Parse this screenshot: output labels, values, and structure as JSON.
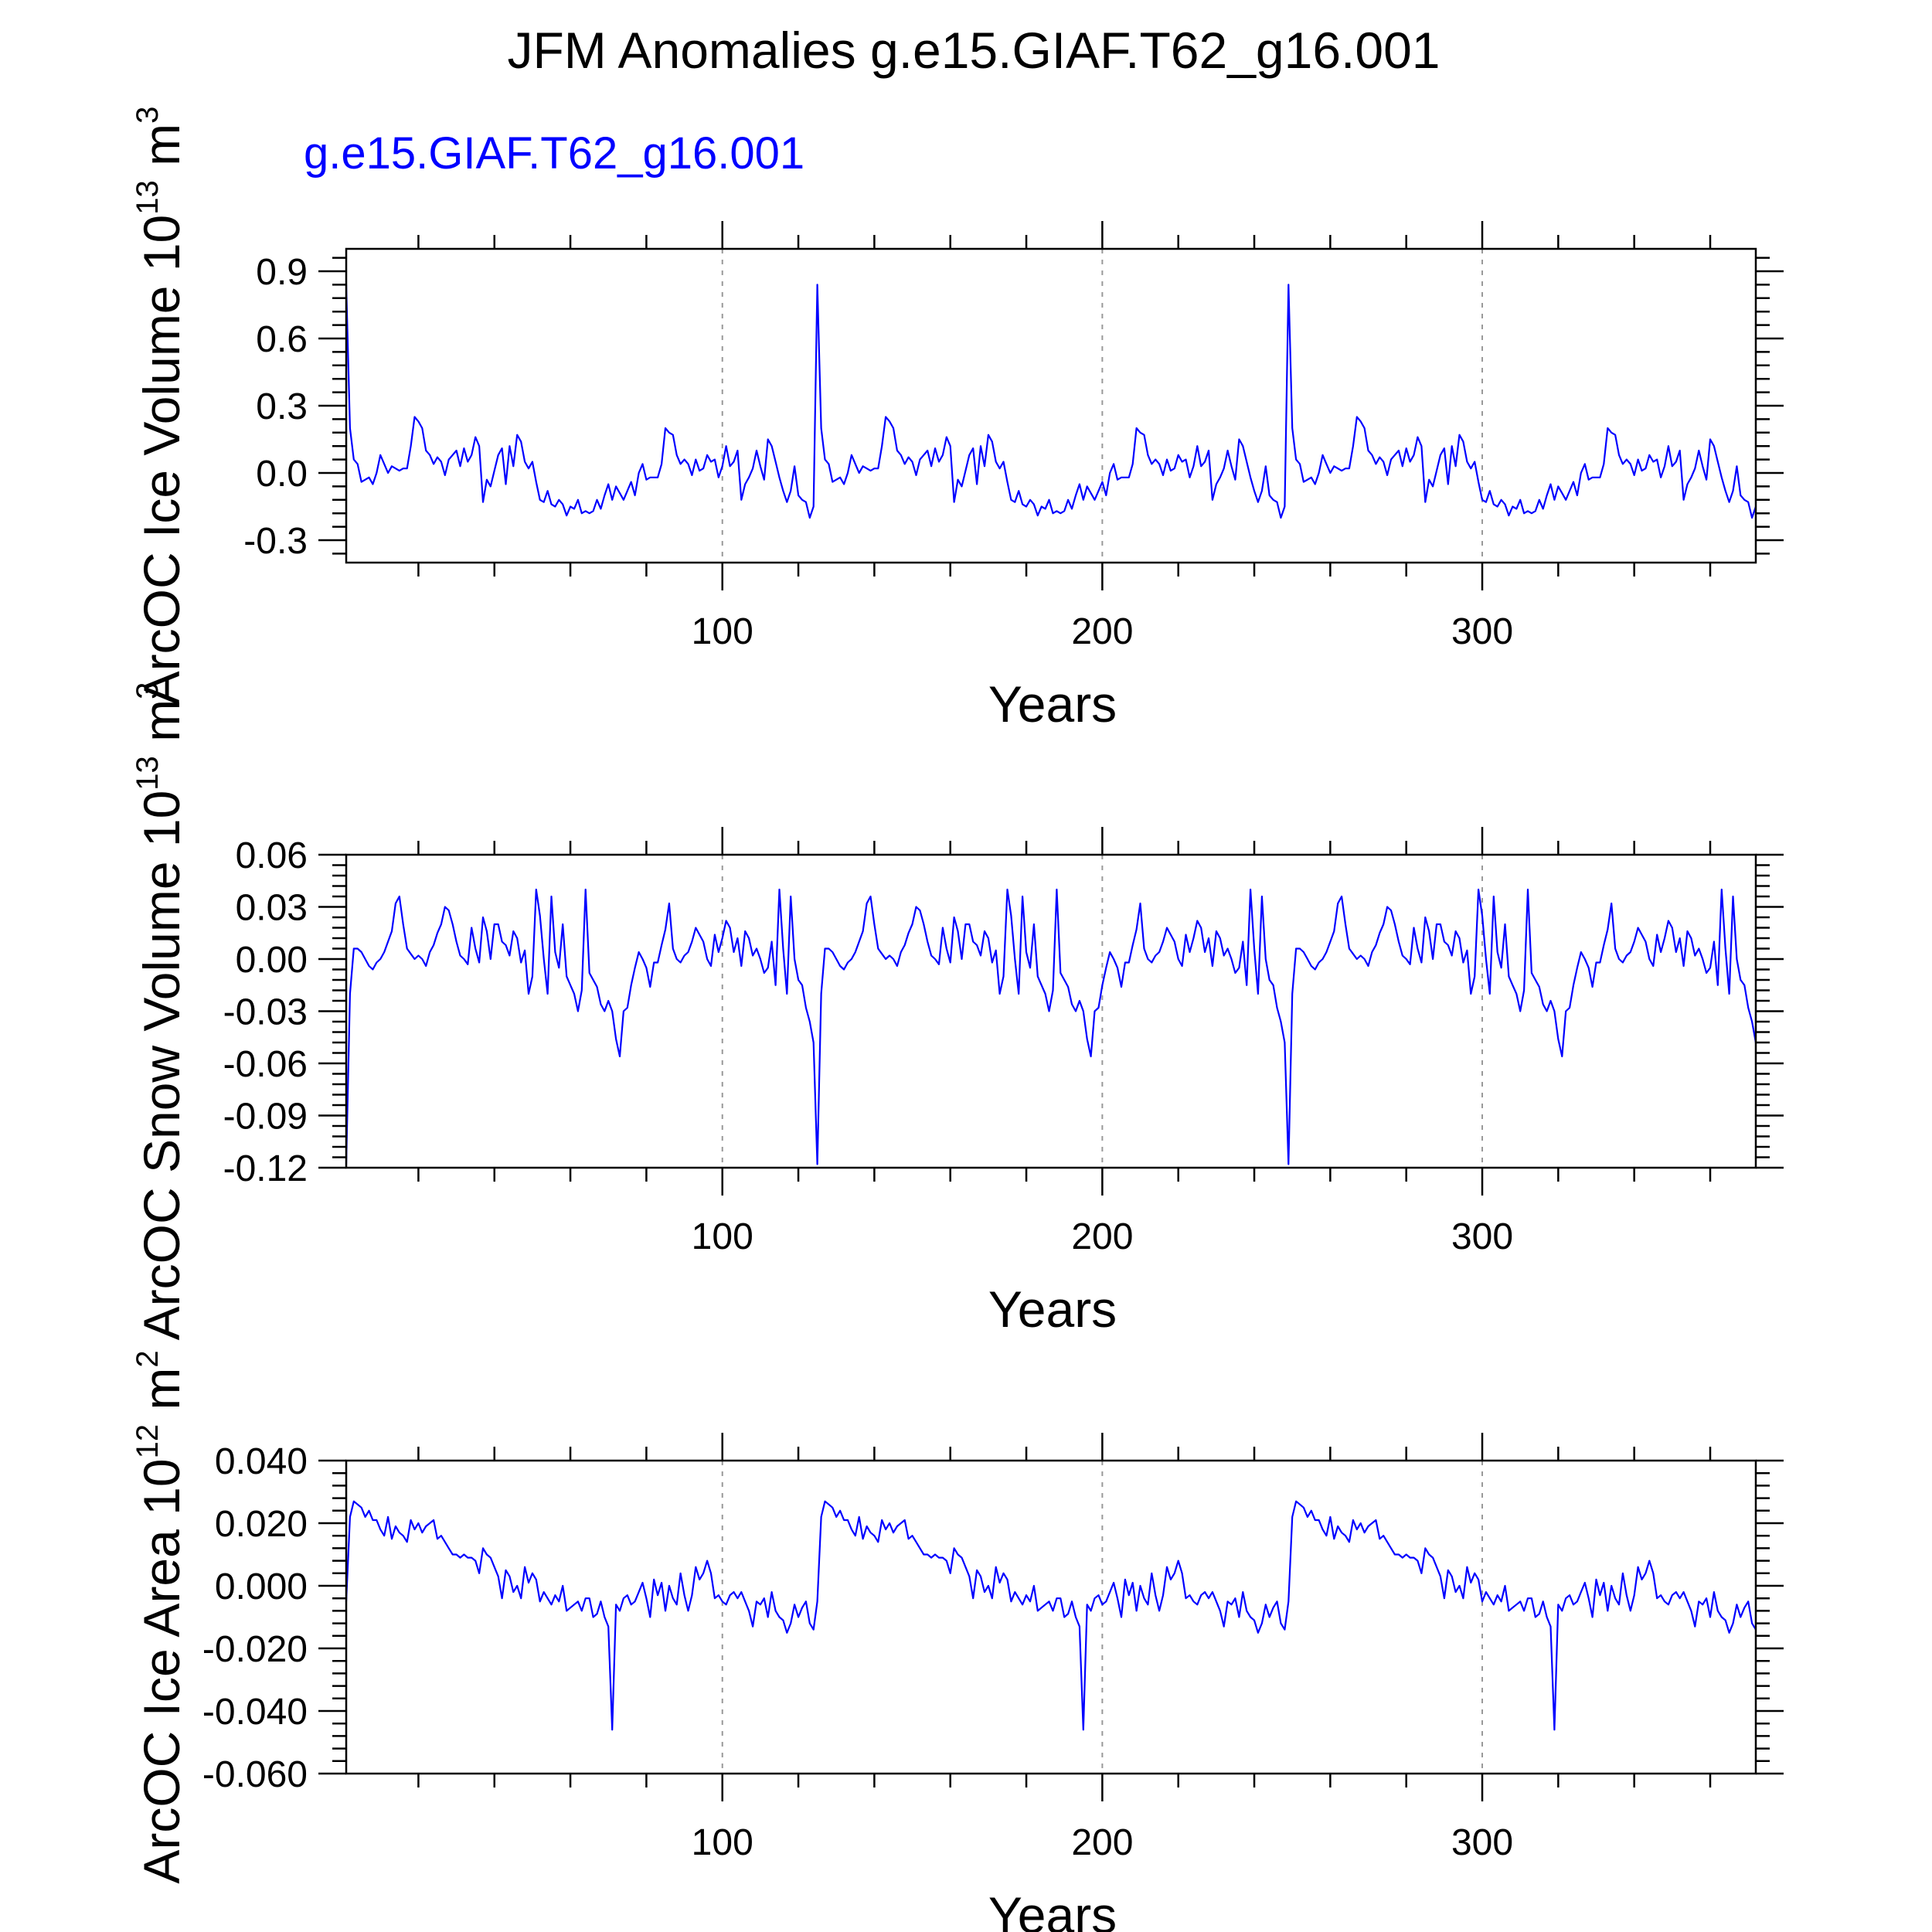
{
  "main_title": "JFM Anomalies g.e15.GIAF.T62_g16.001",
  "legend_label": "g.e15.GIAF.T62_g16.001",
  "colors": {
    "series": "#0000ff",
    "frame": "#000000",
    "grid": "#999999",
    "legend": "#0000ff",
    "text": "#000000"
  },
  "chart_data": [
    {
      "type": "line",
      "title": "",
      "xlabel": "Years",
      "ylabel": "ArcOC Ice Volume 10^13 m^3",
      "ylabel_parts": {
        "main": "ArcOC Ice Volume 10",
        "exp1": "13",
        "unit": " m",
        "exp2": "3"
      },
      "xlim": [
        1,
        372
      ],
      "ylim": [
        -0.4,
        1.0
      ],
      "xticks": [
        100,
        200,
        300
      ],
      "xtick_labels": [
        "100",
        "200",
        "300"
      ],
      "yticks": [
        0.9,
        0.6,
        0.3,
        0.0,
        -0.3
      ],
      "ytick_labels": [
        "0.9",
        "0.6",
        "0.3",
        "0.0",
        "-0.3"
      ],
      "x_start": 1,
      "x_step": 1,
      "period": 124,
      "cycle": [
        0.84,
        0.2,
        0.06,
        0.04,
        -0.04,
        -0.03,
        -0.02,
        -0.05,
        0.0,
        0.08,
        0.04,
        0.0,
        0.03,
        0.02,
        0.01,
        0.02,
        0.02,
        0.12,
        0.25,
        0.23,
        0.2,
        0.1,
        0.08,
        0.04,
        0.07,
        0.05,
        -0.01,
        0.06,
        0.08,
        0.1,
        0.03,
        0.11,
        0.05,
        0.08,
        0.16,
        0.12,
        -0.13,
        -0.03,
        -0.06,
        0.01,
        0.08,
        0.11,
        -0.05,
        0.12,
        0.03,
        0.17,
        0.14,
        0.05,
        0.02,
        0.05,
        -0.04,
        -0.12,
        -0.13,
        -0.08,
        -0.14,
        -0.15,
        -0.12,
        -0.14,
        -0.19,
        -0.15,
        -0.16,
        -0.12,
        -0.18,
        -0.17,
        -0.18,
        -0.17,
        -0.12,
        -0.16,
        -0.1,
        -0.05,
        -0.12,
        -0.06,
        -0.09,
        -0.12,
        -0.08,
        -0.04,
        -0.1,
        0.0,
        0.04,
        -0.03,
        -0.02,
        -0.02,
        -0.02,
        0.04,
        0.2,
        0.18,
        0.17,
        0.08,
        0.04,
        0.06,
        0.04,
        -0.01,
        0.06,
        0.01,
        0.02,
        0.08,
        0.05,
        0.06,
        -0.02,
        0.03,
        0.12,
        0.03,
        0.05,
        0.1,
        -0.12,
        -0.05,
        -0.02,
        0.02,
        0.1,
        0.03,
        -0.03,
        0.15,
        0.12,
        0.05,
        -0.02,
        -0.08,
        -0.13,
        -0.08,
        0.03,
        -0.1,
        -0.12,
        -0.13,
        -0.2,
        -0.15
      ]
    },
    {
      "type": "line",
      "title": "",
      "xlabel": "Years",
      "ylabel": "ArcOC Snow Volume 10^13 m^3",
      "ylabel_parts": {
        "main": "ArcOC Snow Volume 10",
        "exp1": "13",
        "unit": " m",
        "exp2": "3"
      },
      "xlim": [
        1,
        372
      ],
      "ylim": [
        -0.12,
        0.06
      ],
      "xticks": [
        100,
        200,
        300
      ],
      "xtick_labels": [
        "100",
        "200",
        "300"
      ],
      "yticks": [
        0.06,
        0.03,
        0.0,
        -0.03,
        -0.06,
        -0.09,
        -0.12
      ],
      "ytick_labels": [
        "0.06",
        "0.03",
        "0.00",
        "-0.03",
        "-0.06",
        "-0.09",
        "-0.12"
      ],
      "x_start": 1,
      "x_step": 1,
      "period": 124,
      "cycle": [
        -0.118,
        -0.02,
        0.006,
        0.006,
        0.004,
        0.0,
        -0.004,
        -0.006,
        -0.002,
        0.0,
        0.004,
        0.01,
        0.016,
        0.032,
        0.036,
        0.02,
        0.006,
        0.003,
        0.0,
        0.002,
        0.0,
        -0.004,
        0.004,
        0.008,
        0.015,
        0.02,
        0.03,
        0.028,
        0.02,
        0.01,
        0.002,
        0.0,
        -0.003,
        0.018,
        0.006,
        -0.002,
        0.024,
        0.016,
        0.0,
        0.02,
        0.02,
        0.01,
        0.008,
        0.002,
        0.016,
        0.012,
        -0.002,
        0.005,
        -0.02,
        -0.01,
        0.04,
        0.025,
        0.0,
        -0.02,
        0.036,
        0.004,
        -0.005,
        0.02,
        -0.01,
        -0.015,
        -0.02,
        -0.03,
        -0.018,
        0.04,
        -0.008,
        -0.012,
        -0.016,
        -0.026,
        -0.03,
        -0.024,
        -0.03,
        -0.046,
        -0.056,
        -0.03,
        -0.028,
        -0.015,
        -0.005,
        0.004,
        0.0,
        -0.005,
        -0.016,
        -0.002,
        -0.002,
        0.008,
        0.017,
        0.032,
        0.006,
        0.0,
        -0.002,
        0.002,
        0.004,
        0.01,
        0.018,
        0.014,
        0.01,
        0.0,
        -0.004,
        0.014,
        0.004,
        0.012,
        0.022,
        0.018,
        0.004,
        0.012,
        -0.004,
        0.016,
        0.012,
        0.002,
        0.006,
        0.0,
        -0.008,
        -0.005,
        0.01,
        -0.015,
        0.04,
        0.006,
        -0.02,
        0.036,
        0.0,
        -0.012,
        -0.015,
        -0.028,
        -0.036,
        -0.048
      ]
    },
    {
      "type": "line",
      "title": "",
      "xlabel": "Years",
      "ylabel": "ArcOC Ice Area 10^12 m^2",
      "ylabel_parts": {
        "main": "ArcOC Ice Area 10",
        "exp1": "12",
        "unit": " m",
        "exp2": "2"
      },
      "xlim": [
        1,
        372
      ],
      "ylim": [
        -0.06,
        0.04
      ],
      "xticks": [
        100,
        200,
        300
      ],
      "xtick_labels": [
        "100",
        "200",
        "300"
      ],
      "yticks": [
        0.04,
        0.02,
        0.0,
        -0.02,
        -0.04,
        -0.06
      ],
      "ytick_labels": [
        "0.040",
        "0.020",
        "0.000",
        "-0.020",
        "-0.040",
        "-0.060"
      ],
      "x_start": 1,
      "x_step": 1,
      "period": 124,
      "cycle": [
        -0.005,
        0.022,
        0.027,
        0.026,
        0.025,
        0.022,
        0.024,
        0.021,
        0.021,
        0.018,
        0.016,
        0.022,
        0.015,
        0.019,
        0.017,
        0.016,
        0.014,
        0.021,
        0.018,
        0.02,
        0.017,
        0.019,
        0.02,
        0.021,
        0.015,
        0.016,
        0.014,
        0.012,
        0.01,
        0.01,
        0.009,
        0.01,
        0.009,
        0.009,
        0.008,
        0.004,
        0.012,
        0.01,
        0.009,
        0.006,
        0.003,
        -0.004,
        0.005,
        0.003,
        -0.002,
        0.0,
        -0.004,
        0.006,
        0.001,
        0.004,
        0.002,
        -0.005,
        -0.002,
        -0.004,
        -0.006,
        -0.003,
        -0.005,
        0.0,
        -0.008,
        -0.007,
        -0.006,
        -0.005,
        -0.008,
        -0.004,
        -0.004,
        -0.01,
        -0.009,
        -0.005,
        -0.01,
        -0.013,
        -0.046,
        -0.006,
        -0.008,
        -0.004,
        -0.003,
        -0.006,
        -0.005,
        -0.002,
        0.001,
        -0.004,
        -0.01,
        0.002,
        -0.003,
        0.001,
        -0.008,
        0.0,
        -0.004,
        -0.006,
        0.004,
        -0.003,
        -0.008,
        -0.003,
        0.006,
        0.002,
        0.004,
        0.008,
        0.004,
        -0.004,
        -0.003,
        -0.005,
        -0.006,
        -0.003,
        -0.002,
        -0.004,
        -0.002,
        -0.005,
        -0.008,
        -0.013,
        -0.005,
        -0.006,
        -0.004,
        -0.01,
        -0.002,
        -0.008,
        -0.01,
        -0.011,
        -0.015,
        -0.012,
        -0.006,
        -0.01,
        -0.007,
        -0.005,
        -0.012,
        -0.014
      ]
    }
  ]
}
